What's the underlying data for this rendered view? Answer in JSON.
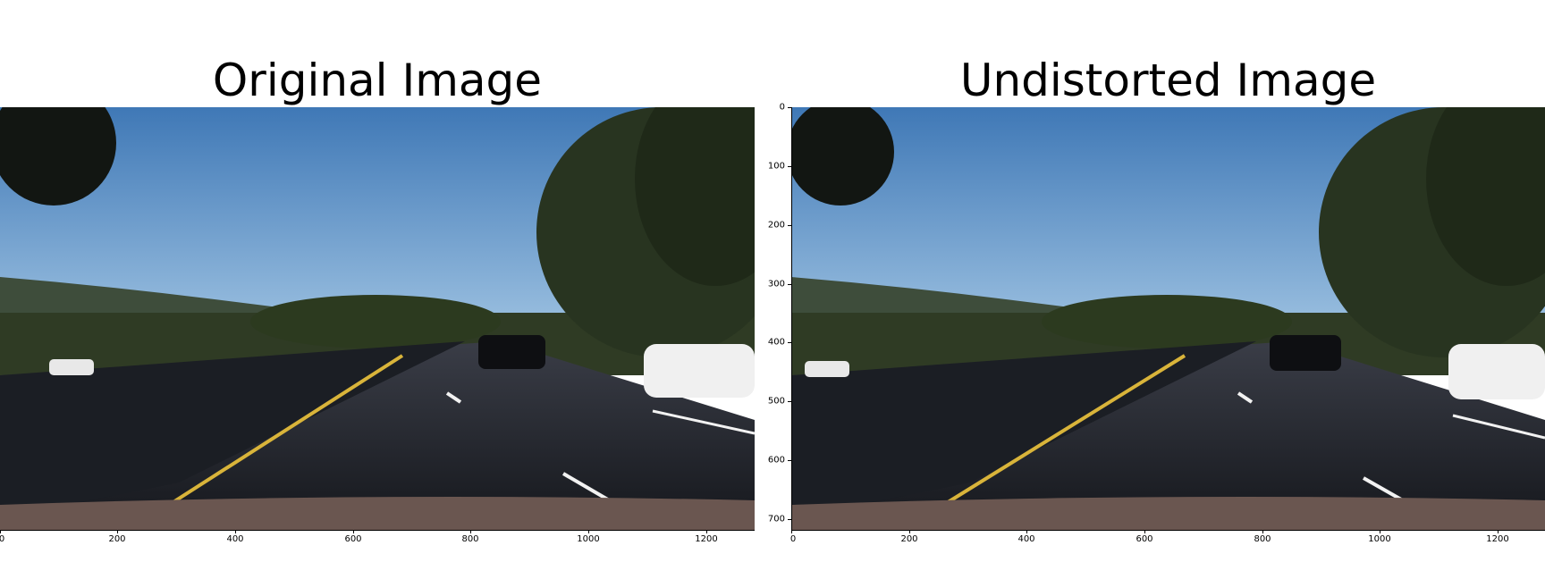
{
  "panels": [
    {
      "title": "Original Image",
      "x_ticks": [
        "0",
        "200",
        "400",
        "600",
        "800",
        "1000",
        "1200"
      ],
      "y_ticks": []
    },
    {
      "title": "Undistorted Image",
      "x_ticks": [
        "0",
        "200",
        "400",
        "600",
        "800",
        "1000",
        "1200"
      ],
      "y_ticks": [
        "0",
        "100",
        "200",
        "300",
        "400",
        "500",
        "600",
        "700"
      ]
    }
  ],
  "image_description_icons": [
    "road-photo"
  ],
  "colors": {
    "sky": "#4a7fb8",
    "road": "#2c2f38",
    "lane_yellow": "#d9b43a",
    "lane_white": "#f2f2f2"
  }
}
